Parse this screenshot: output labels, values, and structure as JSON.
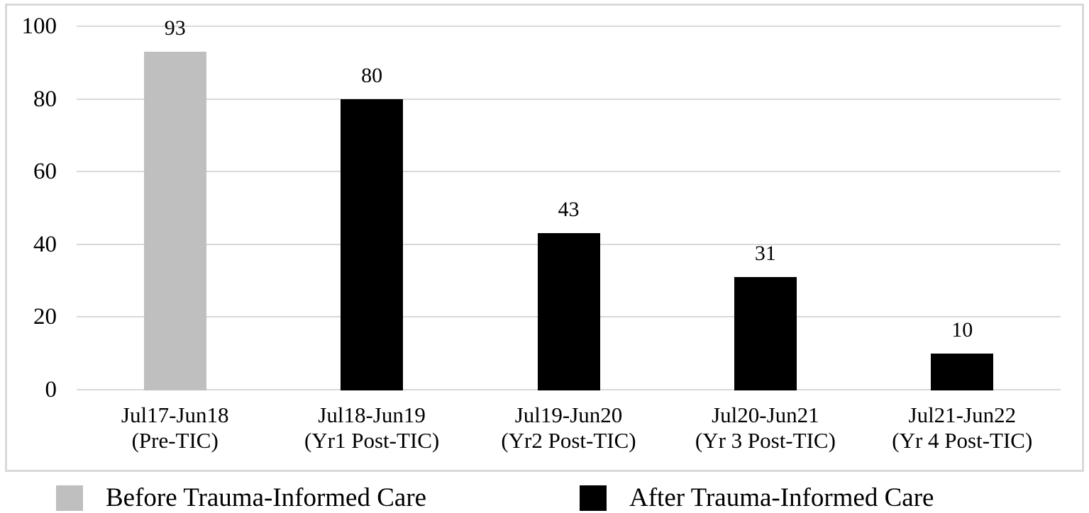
{
  "chart_data": {
    "type": "bar",
    "title": "",
    "xlabel": "",
    "ylabel": "",
    "categories": [
      {
        "line1": "Jul17-Jun18",
        "line2": "(Pre-TIC)"
      },
      {
        "line1": "Jul18-Jun19",
        "line2": "(Yr1 Post-TIC)"
      },
      {
        "line1": "Jul19-Jun20",
        "line2": "(Yr2 Post-TIC)"
      },
      {
        "line1": "Jul20-Jun21",
        "line2": "(Yr 3 Post-TIC)"
      },
      {
        "line1": "Jul21-Jun22",
        "line2": "(Yr 4 Post-TIC)"
      }
    ],
    "values": [
      93,
      80,
      43,
      31,
      10
    ],
    "bar_series": [
      "before",
      "after",
      "after",
      "after",
      "after"
    ],
    "series": [
      {
        "id": "before",
        "name": "Before Trauma-Informed Care",
        "color": "#bfbfbf"
      },
      {
        "id": "after",
        "name": "After Trauma-Informed Care",
        "color": "#000000"
      }
    ],
    "legend": [
      {
        "label": "Before Trauma-Informed Care",
        "color": "#bfbfbf"
      },
      {
        "label": "After Trauma-Informed Care",
        "color": "#000000"
      }
    ],
    "y_ticks": [
      0,
      20,
      40,
      60,
      80,
      100
    ],
    "ylim": [
      0,
      100
    ],
    "grid": true,
    "legend_position": "bottom",
    "colors": {
      "gridline": "#d9d9d9",
      "frame": "#d9d9d9",
      "text": "#000000",
      "background": "#ffffff"
    }
  }
}
